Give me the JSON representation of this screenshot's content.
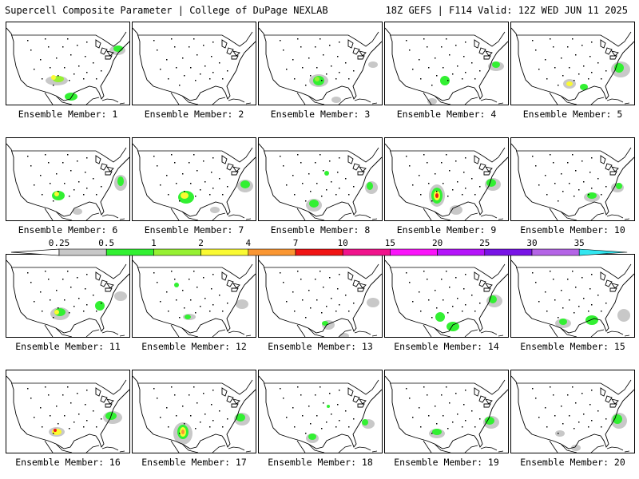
{
  "header": {
    "left_title": "Supercell Composite Parameter | College of DuPage NEXLAB",
    "right_title": "18Z GEFS | F114 Valid: 12Z WED JUN 11 2025"
  },
  "panels": [
    {
      "label": "Ensemble Member: 1"
    },
    {
      "label": "Ensemble Member: 2"
    },
    {
      "label": "Ensemble Member: 3"
    },
    {
      "label": "Ensemble Member: 4"
    },
    {
      "label": "Ensemble Member: 5"
    },
    {
      "label": "Ensemble Member: 6"
    },
    {
      "label": "Ensemble Member: 7"
    },
    {
      "label": "Ensemble Member: 8"
    },
    {
      "label": "Ensemble Member: 9"
    },
    {
      "label": "Ensemble Member: 10"
    },
    {
      "label": "Ensemble Member: 11"
    },
    {
      "label": "Ensemble Member: 12"
    },
    {
      "label": "Ensemble Member: 13"
    },
    {
      "label": "Ensemble Member: 14"
    },
    {
      "label": "Ensemble Member: 15"
    },
    {
      "label": "Ensemble Member: 16"
    },
    {
      "label": "Ensemble Member: 17"
    },
    {
      "label": "Ensemble Member: 18"
    },
    {
      "label": "Ensemble Member: 19"
    },
    {
      "label": "Ensemble Member: 20"
    }
  ],
  "legend": {
    "ticks": [
      "0.25",
      "0.5",
      "1",
      "2",
      "4",
      "7",
      "10",
      "15",
      "20",
      "25",
      "30",
      "35"
    ],
    "colors": [
      "#c8c8c8",
      "#32f032",
      "#96f032",
      "#fafa32",
      "#fa9632",
      "#f01414",
      "#f0148c",
      "#fa14fa",
      "#b414fa",
      "#7814e6",
      "#b464e6",
      "#32e6f0"
    ]
  }
}
